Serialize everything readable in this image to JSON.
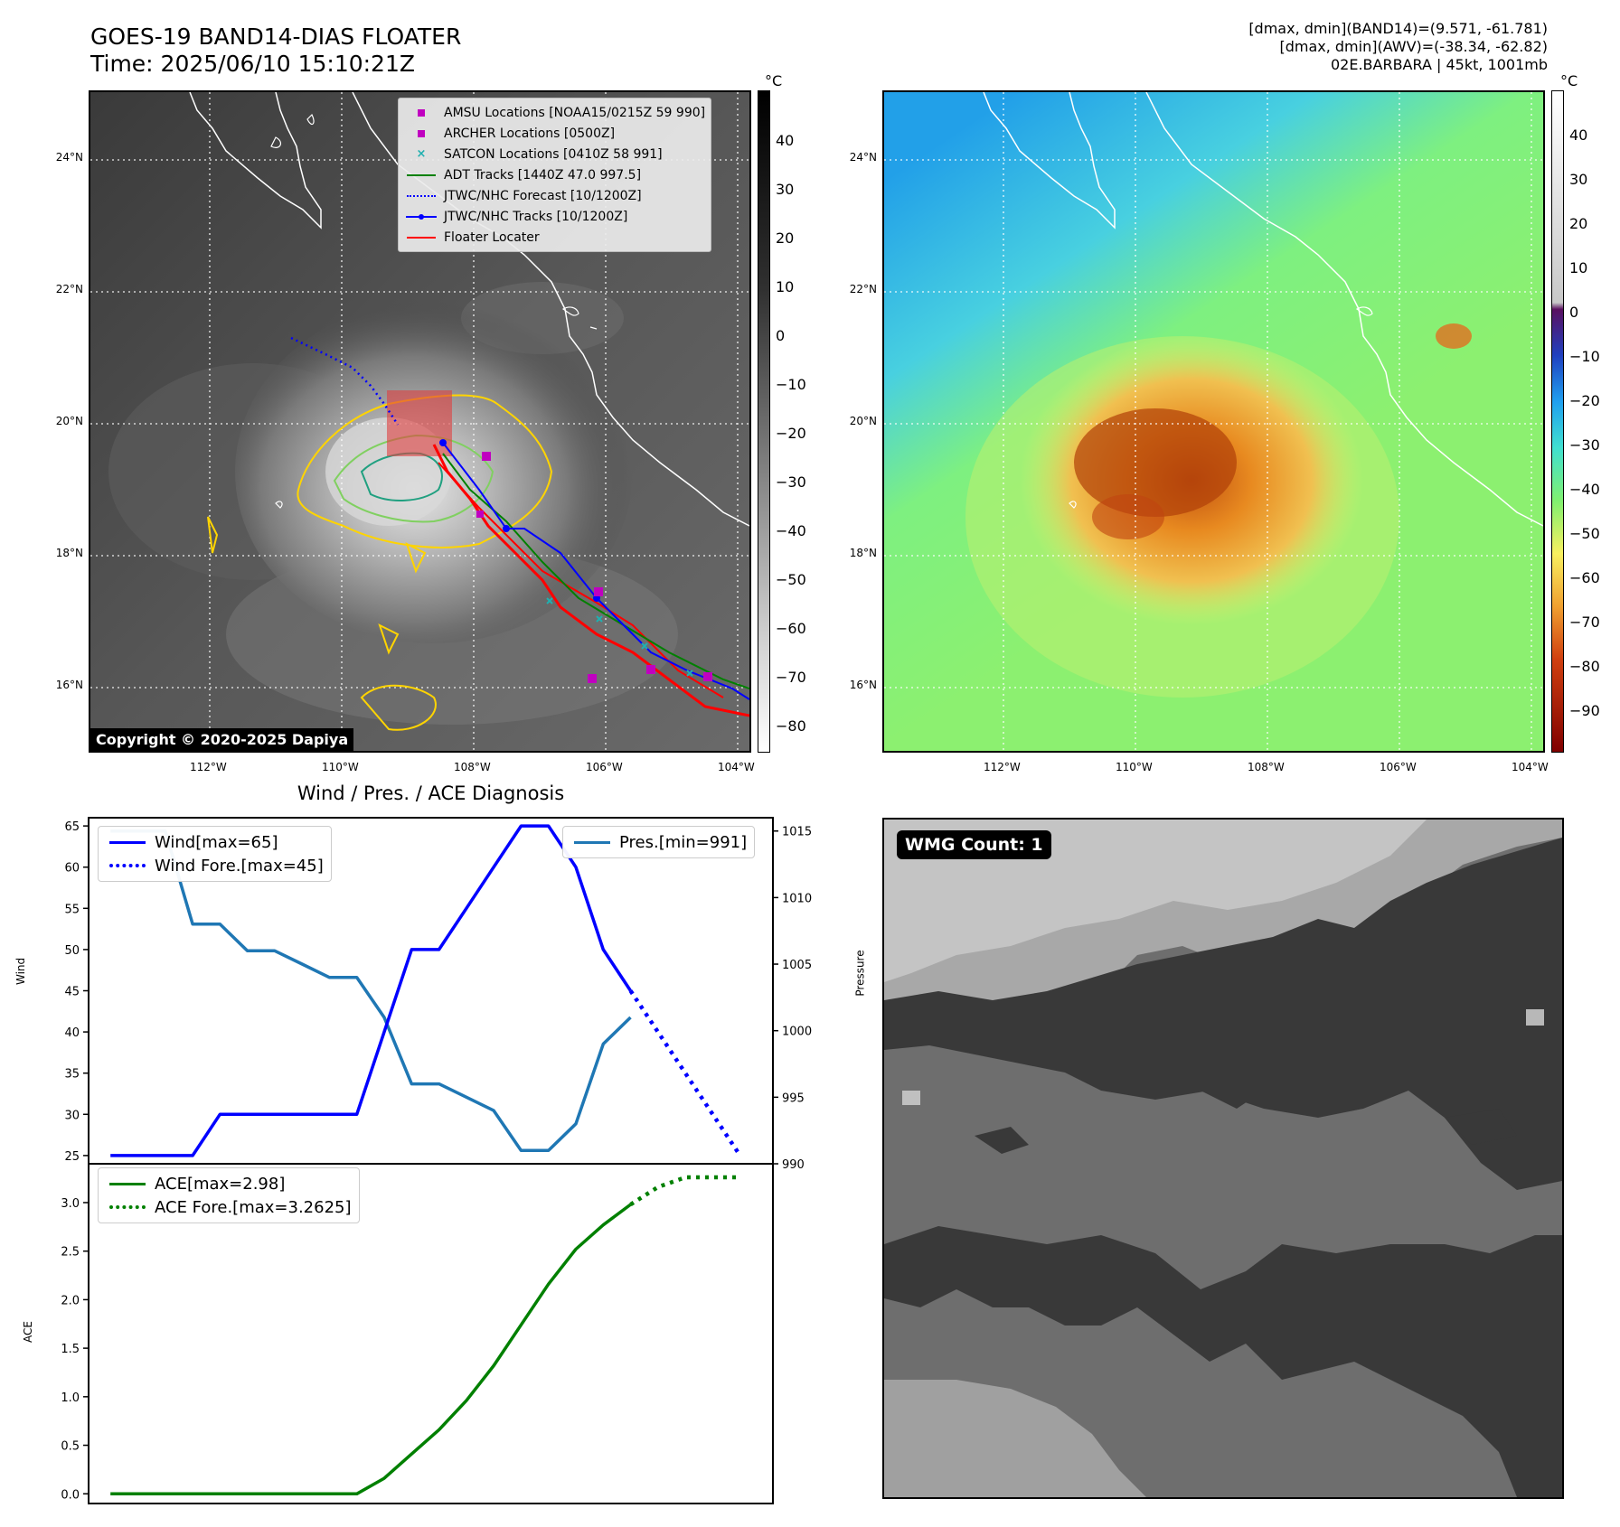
{
  "header": {
    "title_line1": "GOES-19 BAND14-DIAS FLOATER",
    "title_line2": "Time: 2025/06/10 15:10:21Z",
    "info_line1": "[dmax, dmin](BAND14)=(9.571, -61.781)",
    "info_line2": "[dmax, dmin](AWV)=(-38.34, -62.82)",
    "info_line3": "02E.BARBARA | 45kt, 1001mb"
  },
  "maps": {
    "lat_labels": [
      "24°N",
      "22°N",
      "20°N",
      "18°N",
      "16°N"
    ],
    "lon_labels": [
      "112°W",
      "110°W",
      "108°W",
      "106°W",
      "104°W"
    ],
    "copyright": "Copyright © 2020-2025 Dapiya"
  },
  "colorbar_left": {
    "unit": "°C",
    "ticks": [
      "40",
      "30",
      "20",
      "10",
      "0",
      "−10",
      "−20",
      "−30",
      "−40",
      "−50",
      "−60",
      "−70",
      "−80"
    ]
  },
  "colorbar_right": {
    "unit": "°C",
    "ticks": [
      "40",
      "30",
      "20",
      "10",
      "0",
      "−10",
      "−20",
      "−30",
      "−40",
      "−50",
      "−60",
      "−70",
      "−80",
      "−90"
    ]
  },
  "map_legend": [
    {
      "label": "AMSU Locations [NOAA15/0215Z 59 990]",
      "symbol": "square",
      "color": "#c000c0"
    },
    {
      "label": "ARCHER Locations [0500Z]",
      "symbol": "square",
      "color": "#c000c0"
    },
    {
      "label": "SATCON Locations [0410Z 58 991]",
      "symbol": "x",
      "color": "#20b0b0"
    },
    {
      "label": "ADT Tracks [1440Z 47.0 997.5]",
      "symbol": "line",
      "color": "#008000"
    },
    {
      "label": "JTWC/NHC Forecast [10/1200Z]",
      "symbol": "dotted",
      "color": "#0000ff"
    },
    {
      "label": "JTWC/NHC Tracks [10/1200Z]",
      "symbol": "line-dot",
      "color": "#0000ff"
    },
    {
      "label": "Floater Locater",
      "symbol": "line",
      "color": "#ff0000"
    }
  ],
  "diag": {
    "title": "Wind / Pres. / ACE Diagnosis",
    "wind_ylabel": "Wind",
    "pres_ylabel": "Pressure",
    "ace_ylabel": "ACE",
    "legend_wind": "Wind[max=65]",
    "legend_wind_fore": "Wind Fore.[max=45]",
    "legend_pres": "Pres.[min=991]",
    "legend_ace": "ACE[max=2.98]",
    "legend_ace_fore": "ACE Fore.[max=3.2625]"
  },
  "wmg": {
    "label": "WMG Count: 1"
  },
  "chart_data": [
    {
      "type": "line",
      "name": "wind",
      "x": [
        0,
        1,
        2,
        3,
        4,
        5,
        6,
        7,
        8,
        9,
        10,
        11,
        12,
        13,
        14,
        15,
        16,
        17,
        18,
        19
      ],
      "values": [
        25,
        25,
        25,
        25,
        30,
        30,
        30,
        30,
        30,
        30,
        40,
        50,
        50,
        55,
        60,
        65,
        65,
        60,
        50,
        45
      ],
      "forecast_x": [
        19,
        20,
        21,
        22,
        23
      ],
      "forecast_values": [
        45,
        40,
        35,
        30,
        25
      ],
      "ylim": [
        24,
        66
      ],
      "yticks": [
        "25",
        "30",
        "35",
        "40",
        "45",
        "50",
        "55",
        "60",
        "65"
      ]
    },
    {
      "type": "line",
      "name": "pressure",
      "x": [
        0,
        1,
        2,
        3,
        4,
        5,
        6,
        7,
        8,
        9,
        10,
        11,
        12,
        13,
        14,
        15,
        16,
        17,
        18,
        19
      ],
      "values": [
        1015,
        1015,
        1015,
        1008,
        1008,
        1006,
        1006,
        1005,
        1004,
        1004,
        1001,
        996,
        996,
        995,
        994,
        991,
        991,
        993,
        999,
        1001
      ],
      "ylim": [
        990,
        1016
      ],
      "yticks": [
        "990",
        "995",
        "1000",
        "1005",
        "1010",
        "1015"
      ]
    },
    {
      "type": "line",
      "name": "ace",
      "x": [
        0,
        1,
        2,
        3,
        4,
        5,
        6,
        7,
        8,
        9,
        10,
        11,
        12,
        13,
        14,
        15,
        16,
        17,
        18,
        19
      ],
      "values": [
        0,
        0,
        0,
        0,
        0,
        0,
        0,
        0,
        0,
        0,
        0.16,
        0.41,
        0.66,
        0.96,
        1.32,
        1.74,
        2.16,
        2.52,
        2.77,
        2.98
      ],
      "forecast_x": [
        19,
        20,
        21,
        22,
        23
      ],
      "forecast_values": [
        2.98,
        3.16,
        3.26,
        3.26,
        3.26
      ],
      "ylim": [
        -0.1,
        3.4
      ],
      "yticks": [
        "0.0",
        "0.5",
        "1.0",
        "1.5",
        "2.0",
        "2.5",
        "3.0"
      ]
    }
  ]
}
